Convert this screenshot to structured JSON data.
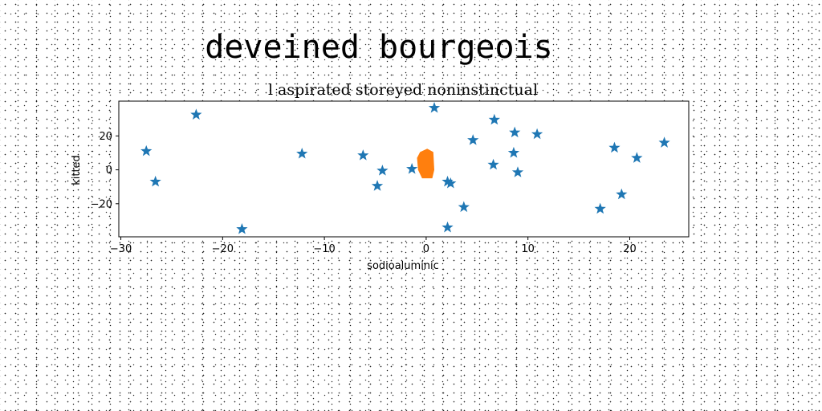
{
  "chart_data": {
    "type": "scatter",
    "title": "deveined bourgeois",
    "subtitle": "l aspirated storeyed noninstinctual",
    "xlabel": "sodioaluminic",
    "ylabel": "kitted",
    "xlim": [
      -30.2,
      25.8
    ],
    "ylim": [
      -39.5,
      40.5
    ],
    "xticks": [
      -30,
      -20,
      -10,
      0,
      10,
      20
    ],
    "xtick_labels": [
      "−30",
      "−20",
      "−10",
      "0",
      "10",
      "20"
    ],
    "yticks": [
      -20,
      0,
      20
    ],
    "ytick_labels": [
      "−20",
      "0",
      "20"
    ],
    "grid": false,
    "series": [
      {
        "name": "stars",
        "marker": "star",
        "color": "#1f77b4",
        "points": [
          [
            -27.5,
            11
          ],
          [
            -26.6,
            -7
          ],
          [
            -22.6,
            32.5
          ],
          [
            -18.1,
            -35
          ],
          [
            -12.2,
            9.5
          ],
          [
            -6.2,
            8.5
          ],
          [
            -4.3,
            -0.5
          ],
          [
            -4.8,
            -9.5
          ],
          [
            -1.4,
            0.5
          ],
          [
            0.8,
            36.5
          ],
          [
            2.1,
            -7
          ],
          [
            2.4,
            -8
          ],
          [
            2.1,
            -34
          ],
          [
            3.7,
            -22
          ],
          [
            4.6,
            17.5
          ],
          [
            6.7,
            29.5
          ],
          [
            6.6,
            3
          ],
          [
            8.7,
            22
          ],
          [
            8.6,
            10
          ],
          [
            9.0,
            -1.5
          ],
          [
            10.9,
            21
          ],
          [
            17.1,
            -23
          ],
          [
            18.5,
            13
          ],
          [
            19.2,
            -14.5
          ],
          [
            20.7,
            7
          ],
          [
            23.4,
            16
          ]
        ]
      },
      {
        "name": "blob",
        "marker": "polygon",
        "color": "#ff7f0e",
        "points": [
          [
            -0.6,
            10.5
          ],
          [
            0.1,
            12.5
          ],
          [
            0.7,
            10.5
          ],
          [
            0.8,
            0
          ],
          [
            0.6,
            -5
          ],
          [
            -0.4,
            -5
          ],
          [
            -0.8,
            0
          ],
          [
            -0.9,
            7
          ]
        ]
      }
    ]
  }
}
